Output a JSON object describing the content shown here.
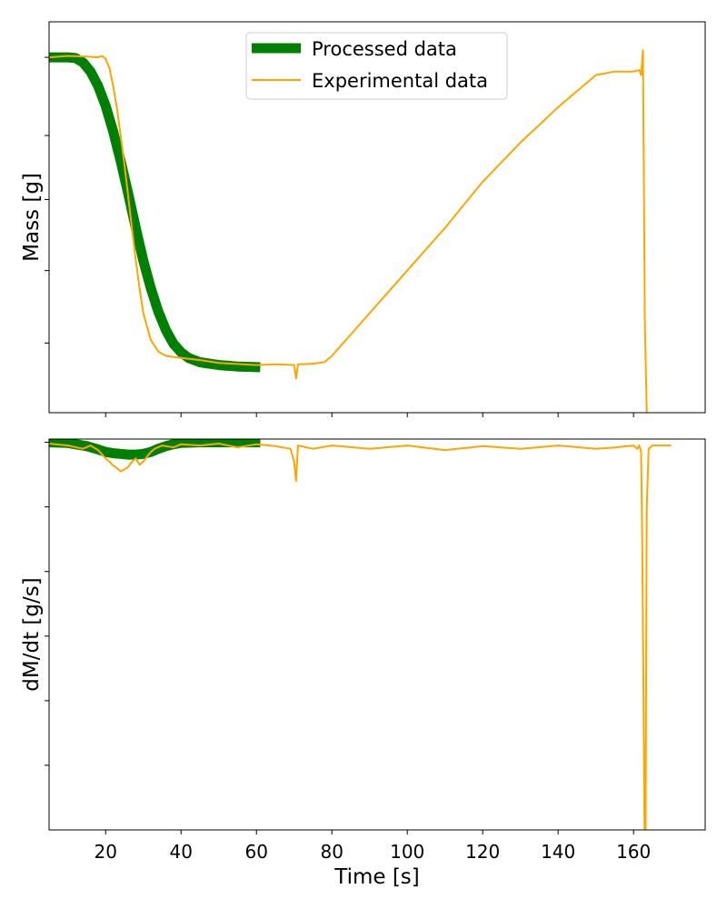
{
  "colors": {
    "processed": "#008000",
    "experimental": "#FFA500",
    "axes": "#000000",
    "background": "#ffffff"
  },
  "chart_data": [
    {
      "type": "line",
      "ylabel": "Mass [g]",
      "xlabel": "",
      "xlim": [
        5,
        179
      ],
      "ylim": [
        -0.3,
        5.2
      ],
      "y_tick_labels_shown": false,
      "grid": false,
      "legend": {
        "placement": "top-center",
        "entries": [
          "Processed data",
          "Experimental data"
        ]
      },
      "series": [
        {
          "name": "Processed data",
          "x": [
            5,
            10,
            12,
            14,
            16,
            18,
            20,
            22,
            24,
            26,
            28,
            30,
            32,
            34,
            36,
            38,
            40,
            42,
            45,
            50,
            55,
            61
          ],
          "y": [
            4.7,
            4.7,
            4.69,
            4.63,
            4.5,
            4.3,
            4.02,
            3.66,
            3.24,
            2.78,
            2.3,
            1.84,
            1.45,
            1.12,
            0.86,
            0.67,
            0.55,
            0.47,
            0.41,
            0.37,
            0.35,
            0.34
          ]
        },
        {
          "name": "Experimental data",
          "x": [
            5,
            10,
            15,
            18,
            19,
            20,
            21,
            22,
            23,
            24,
            25,
            26,
            27,
            28,
            29,
            30,
            32,
            34,
            36,
            40,
            45,
            50,
            60,
            65,
            70,
            70.5,
            71,
            75,
            78,
            80,
            85,
            90,
            100,
            110,
            120,
            130,
            140,
            150,
            155,
            160,
            161.5,
            162,
            162.5,
            163,
            163.5
          ],
          "y": [
            4.7,
            4.72,
            4.71,
            4.7,
            4.72,
            4.68,
            4.55,
            4.3,
            3.98,
            3.6,
            3.18,
            2.74,
            2.28,
            1.85,
            1.45,
            1.1,
            0.72,
            0.56,
            0.5,
            0.47,
            0.44,
            0.4,
            0.37,
            0.38,
            0.37,
            0.18,
            0.38,
            0.39,
            0.41,
            0.5,
            0.8,
            1.1,
            1.7,
            2.3,
            2.95,
            3.5,
            4.0,
            4.45,
            4.5,
            4.5,
            4.52,
            4.45,
            4.8,
            1.0,
            -0.3
          ]
        }
      ]
    },
    {
      "type": "line",
      "ylabel": "dM/dt [g/s]",
      "xlabel": "Time [s]",
      "xlim": [
        5,
        179
      ],
      "x_ticks": [
        20,
        40,
        60,
        80,
        100,
        120,
        140,
        160
      ],
      "ylim": [
        -6.0,
        0.05
      ],
      "y_tick_labels_shown": false,
      "grid": false,
      "series": [
        {
          "name": "Processed data",
          "x": [
            5,
            10,
            15,
            18,
            20,
            22,
            24,
            26,
            28,
            30,
            32,
            34,
            36,
            38,
            40,
            45,
            50,
            61
          ],
          "y": [
            0.0,
            -0.01,
            -0.06,
            -0.11,
            -0.15,
            -0.17,
            -0.18,
            -0.19,
            -0.19,
            -0.18,
            -0.15,
            -0.1,
            -0.06,
            -0.03,
            -0.01,
            0.0,
            0.0,
            0.0
          ]
        },
        {
          "name": "Experimental data",
          "x": [
            5,
            10,
            14,
            16,
            18,
            20,
            21,
            22,
            23,
            24,
            25,
            26,
            27,
            28,
            29,
            30,
            31,
            32,
            33,
            35,
            38,
            40,
            45,
            50,
            55,
            60,
            65,
            69,
            70,
            70.5,
            71,
            75,
            80,
            90,
            100,
            110,
            120,
            130,
            140,
            150,
            155,
            160,
            161,
            161.5,
            162,
            162.3,
            162.6,
            162.9,
            163.2,
            163.5,
            164,
            165,
            170
          ],
          "y": [
            -0.02,
            -0.05,
            -0.1,
            -0.05,
            -0.12,
            -0.25,
            -0.3,
            -0.36,
            -0.4,
            -0.45,
            -0.42,
            -0.38,
            -0.3,
            -0.25,
            -0.35,
            -0.3,
            -0.22,
            -0.15,
            -0.1,
            -0.05,
            -0.08,
            -0.03,
            -0.05,
            -0.02,
            -0.08,
            -0.03,
            -0.06,
            -0.1,
            -0.3,
            -0.6,
            -0.05,
            -0.1,
            -0.05,
            -0.1,
            -0.05,
            -0.12,
            -0.06,
            -0.1,
            -0.05,
            -0.1,
            -0.08,
            -0.05,
            -0.1,
            -0.05,
            -0.15,
            -1.5,
            -3.5,
            -6.0,
            -6.0,
            -1.0,
            -0.1,
            -0.05,
            -0.05
          ]
        }
      ]
    }
  ]
}
